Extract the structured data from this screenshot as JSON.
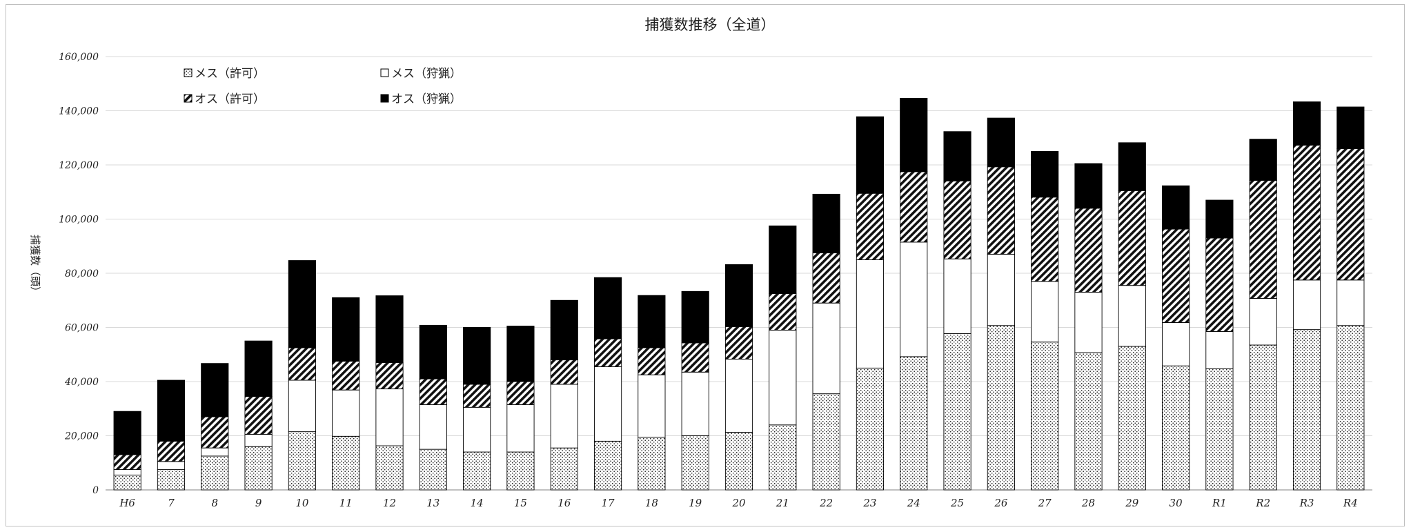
{
  "chart_data": {
    "type": "bar",
    "stacked": true,
    "title": "捕獲数推移（全道）",
    "ylabel": "捕獲数（頭）",
    "xlabel": "",
    "ylim": [
      0,
      160000
    ],
    "yticks": [
      0,
      20000,
      40000,
      60000,
      80000,
      100000,
      120000,
      140000,
      160000
    ],
    "ytick_labels": [
      "0",
      "20,000",
      "40,000",
      "60,000",
      "80,000",
      "100,000",
      "120,000",
      "140,000",
      "160,000"
    ],
    "grid": true,
    "legend_position": "top-left",
    "categories": [
      "H6",
      "7",
      "8",
      "9",
      "10",
      "11",
      "12",
      "13",
      "14",
      "15",
      "16",
      "17",
      "18",
      "19",
      "20",
      "21",
      "22",
      "23",
      "24",
      "25",
      "26",
      "27",
      "28",
      "29",
      "30",
      "R1",
      "R2",
      "R3",
      "R4"
    ],
    "series": [
      {
        "name": "メス（許可）",
        "pattern": "dots",
        "values": [
          5500,
          7500,
          12500,
          16000,
          21500,
          19800,
          16300,
          15000,
          14000,
          14000,
          15500,
          18000,
          19500,
          20000,
          21300,
          24000,
          35500,
          45000,
          49200,
          57700,
          60700,
          54600,
          50700,
          53000,
          45800,
          44700,
          53500,
          59200,
          60700
        ]
      },
      {
        "name": "メス（狩猟）",
        "pattern": "white",
        "values": [
          2000,
          3000,
          3000,
          4500,
          19000,
          17100,
          21000,
          16500,
          16500,
          17500,
          23500,
          27500,
          23000,
          23500,
          27000,
          35000,
          33500,
          40000,
          42300,
          27600,
          26300,
          22400,
          22300,
          22500,
          16000,
          13800,
          17200,
          18300,
          16800
        ]
      },
      {
        "name": "オス（許可）",
        "pattern": "hatch",
        "values": [
          5500,
          7500,
          11500,
          14000,
          12000,
          10600,
          9700,
          9500,
          8500,
          8500,
          9000,
          10300,
          10000,
          10800,
          12000,
          13500,
          18500,
          24500,
          26000,
          28800,
          32300,
          31100,
          31000,
          35000,
          34500,
          34500,
          43600,
          49800,
          48500
        ]
      },
      {
        "name": "オス（狩猟）",
        "pattern": "black",
        "values": [
          16000,
          22500,
          19700,
          20500,
          32200,
          23500,
          24700,
          19800,
          21000,
          20500,
          22000,
          22600,
          19300,
          19000,
          22900,
          25000,
          21700,
          28300,
          27100,
          18200,
          18000,
          16900,
          16500,
          17700,
          16000,
          14000,
          15200,
          16000,
          15400
        ]
      }
    ]
  }
}
